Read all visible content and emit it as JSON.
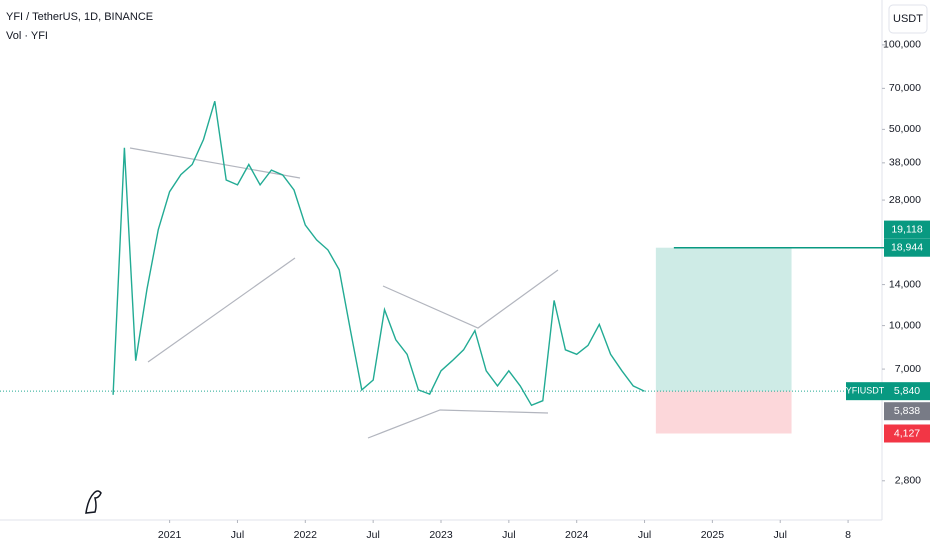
{
  "chart_data": {
    "type": "line",
    "title": "YFI / TetherUS, 1D, BINANCE",
    "subtitle": "Vol · YFI",
    "currency": "USDT",
    "log_scale": true,
    "grid": false,
    "color": "#22ab94",
    "x": [
      "2020-08",
      "2020-09",
      "2020-10",
      "2020-11",
      "2020-12",
      "2021-01",
      "2021-02",
      "2021-03",
      "2021-04",
      "2021-05",
      "2021-06",
      "2021-07",
      "2021-08",
      "2021-09",
      "2021-10",
      "2021-11",
      "2021-12",
      "2022-01",
      "2022-02",
      "2022-03",
      "2022-04",
      "2022-05",
      "2022-06",
      "2022-07",
      "2022-08",
      "2022-09",
      "2022-10",
      "2022-11",
      "2022-12",
      "2023-01",
      "2023-02",
      "2023-03",
      "2023-04",
      "2023-05",
      "2023-06",
      "2023-07",
      "2023-08",
      "2023-09",
      "2023-10",
      "2023-11",
      "2023-12",
      "2024-01",
      "2024-02",
      "2024-03",
      "2024-04",
      "2024-05",
      "2024-06",
      "2024-07"
    ],
    "values": [
      5670,
      43000,
      7500,
      13500,
      22000,
      30000,
      34500,
      37500,
      46000,
      63000,
      33000,
      31700,
      37500,
      31700,
      35800,
      34400,
      30400,
      22800,
      20200,
      18600,
      15800,
      9600,
      5900,
      6400,
      11400,
      8900,
      7900,
      5900,
      5700,
      6900,
      7500,
      8200,
      9600,
      6900,
      6100,
      6900,
      6100,
      5200,
      5400,
      12300,
      8200,
      7900,
      8500,
      10100,
      7900,
      6900,
      6100,
      5840
    ],
    "xlim": [
      "2019-10",
      "2026-04"
    ],
    "xticks": [
      {
        "value": "2021-01",
        "label": "2021"
      },
      {
        "value": "2021-07",
        "label": "Jul"
      },
      {
        "value": "2022-01",
        "label": "2022"
      },
      {
        "value": "2022-07",
        "label": "Jul"
      },
      {
        "value": "2023-01",
        "label": "2023"
      },
      {
        "value": "2023-07",
        "label": "Jul"
      },
      {
        "value": "2024-01",
        "label": "2024"
      },
      {
        "value": "2024-07",
        "label": "Jul"
      },
      {
        "value": "2025-01",
        "label": "2025"
      },
      {
        "value": "2025-07",
        "label": "Jul"
      },
      {
        "value": "2026-01",
        "label": "8"
      }
    ],
    "ylim": [
      2030,
      144500
    ],
    "yticks": [
      {
        "value": 2800,
        "label": "2,800"
      },
      {
        "value": 7000,
        "label": "7,000"
      },
      {
        "value": 10000,
        "label": "10,000"
      },
      {
        "value": 14000,
        "label": "14,000"
      },
      {
        "value": 28000,
        "label": "28,000"
      },
      {
        "value": 38000,
        "label": "38,000"
      },
      {
        "value": 50000,
        "label": "50,000"
      },
      {
        "value": 70000,
        "label": "70,000"
      },
      {
        "value": 100000,
        "label": "100,000"
      }
    ],
    "symbol_tag": "YFIUSDT",
    "price_labels": {
      "values": [
        19118,
        18944,
        5840,
        5838,
        4127
      ],
      "value_labels": [
        "19,118",
        "18,944",
        "5,840",
        "5,838",
        "4,127"
      ],
      "colors": [
        "#089981",
        "#089981",
        "#089981",
        "#787b86",
        "#f23645"
      ]
    },
    "position": {
      "start": "2024-08",
      "end": "2025-08",
      "entry": 5840,
      "target": 18944,
      "stop": 4127
    }
  }
}
